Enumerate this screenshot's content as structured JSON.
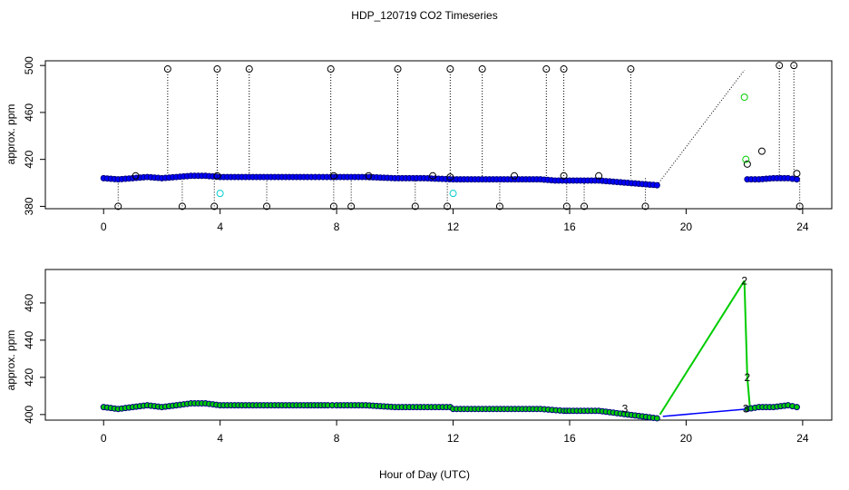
{
  "figure": {
    "title": "HDP_120719  CO2 Timeseries",
    "xlabel": "Hour of Day (UTC)"
  },
  "chart_data": [
    {
      "type": "scatter",
      "panel": "top",
      "title": "HDP_120719  CO2 Timeseries",
      "xlabel": "",
      "ylabel": "approx. ppm",
      "xlim": [
        -2,
        25
      ],
      "ylim": [
        378,
        504
      ],
      "x_ticks": [
        0,
        4,
        8,
        12,
        16,
        20,
        24
      ],
      "y_ticks": [
        380,
        420,
        460,
        500
      ],
      "grid": false,
      "colors": {
        "main": "#0000ff",
        "outline": "#000080",
        "spike": "#000000",
        "calib": "#00cc00",
        "low_calib": "#00cccc",
        "trend": "#000000"
      },
      "main_trace": {
        "x": [
          0,
          0.5,
          1,
          1.5,
          2,
          2.5,
          3,
          3.5,
          4,
          5,
          6,
          7,
          7.8,
          8,
          9,
          10,
          11,
          12,
          13,
          14,
          15,
          15.5,
          16,
          17,
          17.5,
          18,
          18.5,
          19
        ],
        "y": [
          404,
          403,
          404,
          405,
          404,
          405,
          406,
          406,
          405,
          405,
          405,
          405,
          405,
          405,
          405,
          404,
          404,
          403,
          403,
          403,
          403,
          402,
          402,
          402,
          401,
          400,
          399,
          398
        ]
      },
      "main_trace_2": {
        "x": [
          22.1,
          22.5,
          23,
          23.5,
          23.8
        ],
        "y": [
          403,
          403,
          404,
          404,
          403
        ]
      },
      "gap_line": {
        "x": [
          19,
          22
        ],
        "y": [
          398,
          496
        ]
      },
      "high_spikes": {
        "x": [
          2.2,
          3.9,
          5.0,
          7.8,
          10.1,
          11.9,
          13.0,
          15.2,
          15.8,
          18.1,
          23.2,
          23.7
        ],
        "y": [
          497,
          497,
          497,
          497,
          497,
          497,
          497,
          497,
          497,
          497,
          500,
          500
        ]
      },
      "low_spikes": {
        "x": [
          0.5,
          2.7,
          3.8,
          5.6,
          7.9,
          8.5,
          10.7,
          11.8,
          13.6,
          15.9,
          16.5,
          18.6,
          23.9
        ],
        "y": [
          380,
          380,
          380,
          380,
          380,
          380,
          380,
          380,
          380,
          380,
          380,
          380,
          380
        ]
      },
      "mid_outliers": {
        "x": [
          1.1,
          3.9,
          7.9,
          9.1,
          11.3,
          11.9,
          14.1,
          15.8,
          17.0,
          22.1,
          22.6,
          23.8
        ],
        "y": [
          406,
          406,
          406,
          406,
          406,
          405,
          406,
          406,
          406,
          416,
          427,
          408
        ]
      },
      "calib_points": {
        "x": [
          22.0,
          22.05
        ],
        "y": [
          473,
          420
        ]
      },
      "low_calib_points": {
        "x": [
          4.0,
          12.0
        ],
        "y": [
          391,
          391
        ]
      }
    },
    {
      "type": "scatter",
      "panel": "bottom",
      "title": "",
      "xlabel": "Hour of Day (UTC)",
      "ylabel": "approx. ppm",
      "xlim": [
        -2,
        25
      ],
      "ylim": [
        397,
        478
      ],
      "x_ticks": [
        0,
        4,
        8,
        12,
        16,
        20,
        24
      ],
      "y_ticks": [
        400,
        420,
        440,
        460
      ],
      "grid": false,
      "colors": {
        "main": "#0000ff",
        "green": "#00cc00",
        "outline": "#000080"
      },
      "main_trace": {
        "x": [
          0,
          0.5,
          1,
          1.5,
          2,
          2.5,
          3,
          3.5,
          4,
          5,
          6,
          7,
          7.7,
          8,
          9,
          10,
          11,
          11.9,
          12,
          13,
          14,
          15,
          15.8,
          16,
          17,
          17.5,
          18,
          18.5,
          19
        ],
        "y": [
          404,
          403,
          404,
          405,
          404,
          405,
          406,
          406,
          405,
          405,
          405,
          405,
          405,
          405,
          405,
          404,
          404,
          404,
          403,
          403,
          403,
          403,
          402,
          402,
          402,
          401,
          400,
          399,
          398
        ]
      },
      "main_trace_2": {
        "x": [
          22.1,
          22.5,
          23,
          23.5,
          23.8
        ],
        "y": [
          403,
          404,
          404,
          405,
          404
        ]
      },
      "blue_gap_line": {
        "x": [
          19.2,
          22.1
        ],
        "y": [
          399,
          403
        ]
      },
      "green_line": {
        "x": [
          19.1,
          22.0,
          22.1,
          22.2
        ],
        "y": [
          400,
          472,
          420,
          402
        ]
      },
      "point_labels": [
        {
          "x": 22.0,
          "y": 472,
          "text": "2"
        },
        {
          "x": 22.1,
          "y": 420,
          "text": "2"
        },
        {
          "x": 22.05,
          "y": 403,
          "text": "3"
        },
        {
          "x": 17.9,
          "y": 403,
          "text": "3"
        }
      ]
    }
  ]
}
